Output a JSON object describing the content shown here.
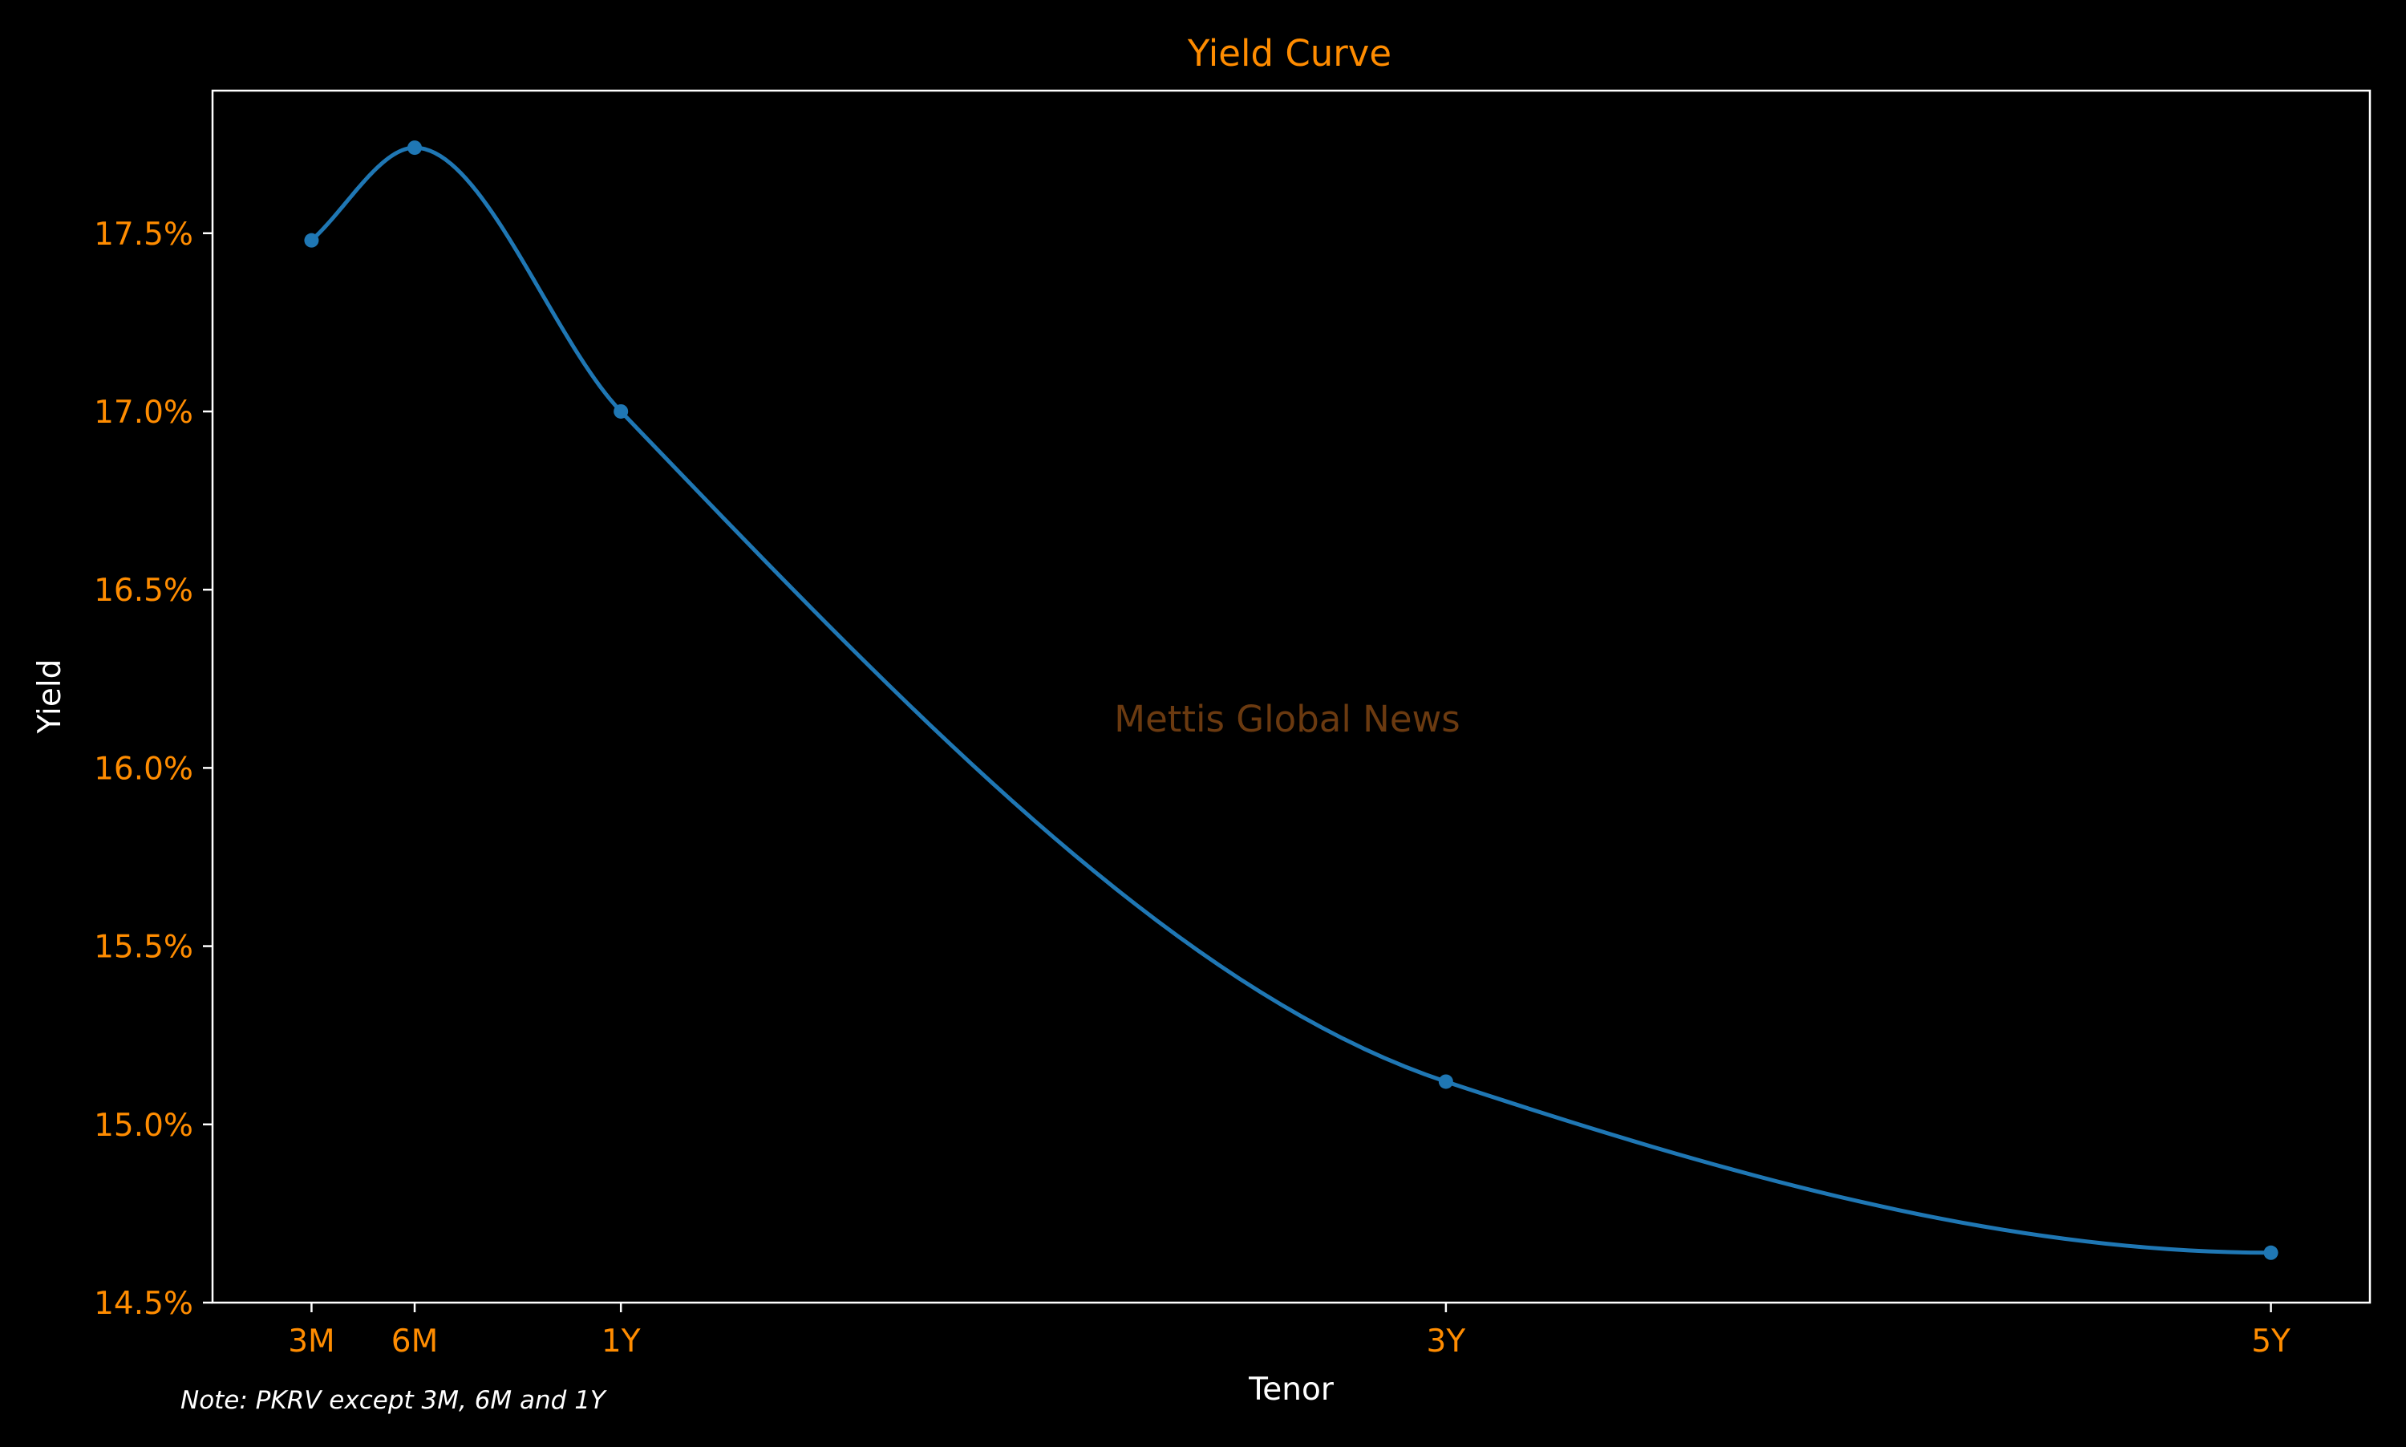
{
  "chart_data": {
    "type": "line",
    "title": "Yield Curve",
    "xlabel": "Tenor",
    "ylabel": "Yield",
    "categories": [
      "3M",
      "6M",
      "1Y",
      "3Y",
      "5Y"
    ],
    "x": [
      0.25,
      0.5,
      1,
      3,
      5
    ],
    "values": [
      17.48,
      17.74,
      17.0,
      15.12,
      14.64
    ],
    "y_unit": "%",
    "ylim": [
      14.5,
      17.9
    ],
    "yticks": [
      "14.5%",
      "15.0%",
      "15.5%",
      "16.0%",
      "16.5%",
      "17.0%",
      "17.5%"
    ],
    "ytick_values": [
      14.5,
      15.0,
      15.5,
      16.0,
      16.5,
      17.0,
      17.5
    ],
    "xlim": [
      0.01,
      5.24
    ],
    "grid": false,
    "legend": "none",
    "watermark": "Mettis Global News",
    "note": "Note: PKRV except 3M, 6M and 1Y",
    "colors": {
      "background": "#000000",
      "line": "#1f77b4",
      "title": "#ff8c00",
      "tick_labels": "#ff8c00",
      "axis_labels": "#ffffff",
      "spines": "#ffffff",
      "watermark": "#6b3a10",
      "note": "#ffffff"
    }
  }
}
